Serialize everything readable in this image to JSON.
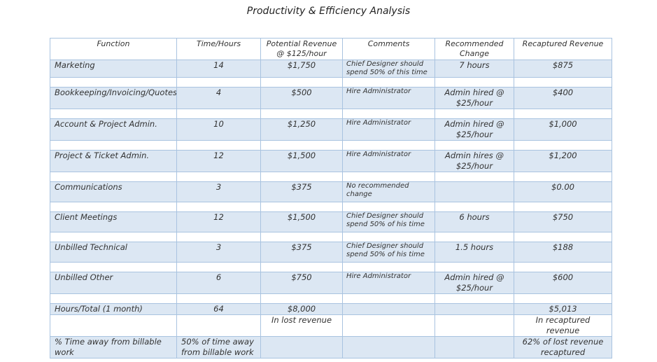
{
  "title": "Productivity & Efficiency Analysis",
  "headers": {
    "function": "Function",
    "time": "Time/Hours",
    "revenue_line1": "Potential Revenue",
    "revenue_line2": "@ $125/hour",
    "comments": "Comments",
    "change_line1": "Recommended",
    "change_line2": "Change",
    "recaptured": "Recaptured Revenue"
  },
  "rows": [
    {
      "function": "Marketing",
      "hours": "14",
      "revenue": "$1,750",
      "comment": "Chief Designer should spend 50% of this time",
      "change": "7 hours",
      "recaptured": "$875"
    },
    {
      "function": "Bookkeeping/Invoicing/Quotes",
      "hours": "4",
      "revenue": "$500",
      "comment": "Hire Administrator",
      "change": "Admin hired @ $25/hour",
      "recaptured": "$400"
    },
    {
      "function": "Account & Project Admin.",
      "hours": "10",
      "revenue": "$1,250",
      "comment": "Hire Administrator",
      "change": "Admin hired @ $25/hour",
      "recaptured": "$1,000"
    },
    {
      "function": "Project & Ticket Admin.",
      "hours": "12",
      "revenue": "$1,500",
      "comment": "Hire Administrator",
      "change": "Admin hires @ $25/hour",
      "recaptured": "$1,200"
    },
    {
      "function": "Communications",
      "hours": "3",
      "revenue": "$375",
      "comment": "No recommended change",
      "change": "",
      "recaptured": "$0.00"
    },
    {
      "function": "Client Meetings",
      "hours": "12",
      "revenue": "$1,500",
      "comment": "Chief Designer should spend 50% of his time",
      "change": "6 hours",
      "recaptured": "$750"
    },
    {
      "function": "Unbilled Technical",
      "hours": "3",
      "revenue": "$375",
      "comment": "Chief Designer should spend 50% of his time",
      "change": "1.5 hours",
      "recaptured": "$188"
    },
    {
      "function": "Unbilled Other",
      "hours": "6",
      "revenue": "$750",
      "comment": "Hire Administrator",
      "change": "Admin hired @ $25/hour",
      "recaptured": "$600"
    }
  ],
  "total": {
    "function": "Hours/Total (1 month)",
    "hours": "64",
    "revenue": "$8,000",
    "revenue_note": "In lost revenue",
    "recaptured": "$5,013",
    "recaptured_note": "In recaptured revenue"
  },
  "percent_row": {
    "function": "% Time away from billable work",
    "hours": "50% of time away from billable work",
    "recaptured": "62% of lost revenue recaptured"
  }
}
